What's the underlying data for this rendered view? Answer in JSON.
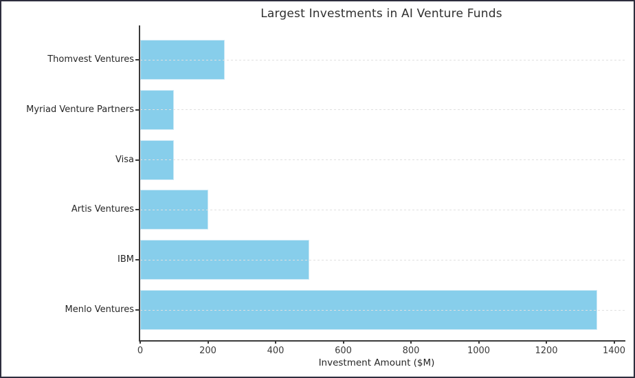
{
  "frame": {
    "background": "#ffffff",
    "border_color": "#2e2e3e"
  },
  "chart_data": {
    "type": "bar",
    "orientation": "horizontal",
    "title": "Largest Investments in AI Venture Funds",
    "xlabel": "Investment Amount ($M)",
    "ylabel": "",
    "categories": [
      "Thomvest Ventures",
      "Myriad Venture Partners",
      "Visa",
      "Artis Ventures",
      "IBM",
      "Menlo Ventures"
    ],
    "values": [
      250,
      100,
      100,
      200,
      500,
      1350
    ],
    "xlim": [
      0,
      1400
    ],
    "xticks": [
      0,
      200,
      400,
      600,
      800,
      1000,
      1200,
      1400
    ],
    "grid": "horizontal-dashed",
    "legend": "none",
    "colors": {
      "bar_fill": "#87CEEB",
      "bar_edge": "#cde9f6",
      "grid_line": "#e0e0e0",
      "axis_line": "#3a3a3a",
      "tick_label": "#3a3a3a",
      "title_text": "#2f2f2f"
    }
  }
}
